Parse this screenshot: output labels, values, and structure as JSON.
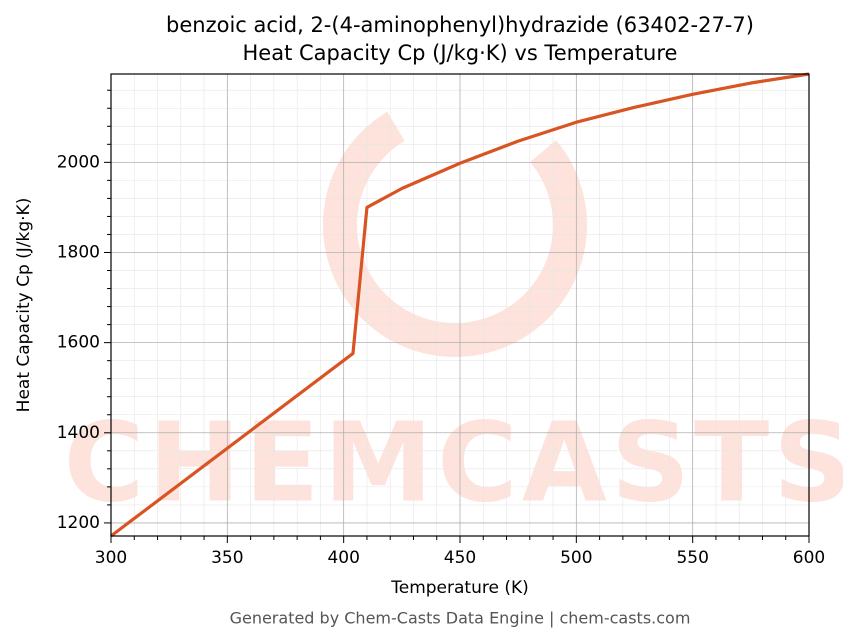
{
  "chart_data": {
    "type": "line",
    "title": "benzoic acid, 2-(4-aminophenyl)hydrazide (63402-27-7)",
    "subtitle": "Heat Capacity Cp (J/kg·K) vs Temperature",
    "x_label": "Temperature (K)",
    "y_label": "Heat Capacity Cp (J/kg·K)",
    "footer": "Generated by Chem-Casts Data Engine | chem-casts.com",
    "watermark": "CHEMCASTS",
    "x": [
      300,
      404,
      410,
      425,
      450,
      475,
      500,
      525,
      550,
      575,
      600
    ],
    "series": [
      {
        "name": "Cp",
        "color": "#d95423",
        "values": [
          1171,
          1576,
          1900,
          1942,
          1998,
          2047,
          2089,
          2122,
          2151,
          2176,
          2196
        ]
      }
    ],
    "xlim": [
      300,
      600
    ],
    "ylim": [
      1171,
      2196
    ],
    "xticks": [
      300,
      350,
      400,
      450,
      500,
      550,
      600
    ],
    "yticks": [
      1200,
      1400,
      1600,
      1800,
      2000
    ],
    "xminorticks": [
      310,
      320,
      330,
      340,
      360,
      370,
      380,
      390,
      410,
      420,
      430,
      440,
      460,
      470,
      480,
      490,
      510,
      520,
      530,
      540,
      560,
      570,
      580,
      590
    ],
    "yminorticks": [
      1240,
      1280,
      1320,
      1360,
      1440,
      1480,
      1520,
      1560,
      1640,
      1680,
      1720,
      1760,
      1840,
      1880,
      1920,
      1960,
      2040,
      2080,
      2120,
      2160
    ],
    "grid": true
  }
}
